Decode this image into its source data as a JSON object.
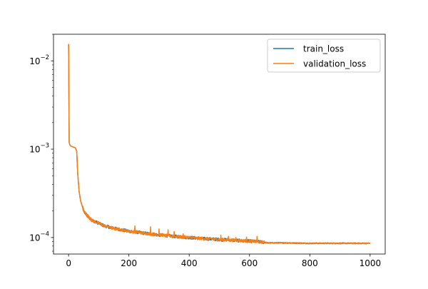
{
  "chart_data": {
    "type": "line",
    "title": "",
    "xlabel": "",
    "ylabel": "",
    "yscale": "log",
    "xlim": [
      -50,
      1050
    ],
    "ylim": [
      6.5e-05,
      0.02
    ],
    "grid": false,
    "legend_position": "top-right",
    "x_ticks": [
      {
        "value": 0,
        "label": "0"
      },
      {
        "value": 200,
        "label": "200"
      },
      {
        "value": 400,
        "label": "400"
      },
      {
        "value": 600,
        "label": "600"
      },
      {
        "value": 800,
        "label": "800"
      },
      {
        "value": 1000,
        "label": "1000"
      }
    ],
    "y_major_ticks": [
      {
        "value": 0.0001,
        "base": "10",
        "exp": "−4"
      },
      {
        "value": 0.001,
        "base": "10",
        "exp": "−3"
      },
      {
        "value": 0.01,
        "base": "10",
        "exp": "−2"
      }
    ],
    "y_minor_ticks": [
      7e-05,
      8e-05,
      9e-05,
      0.0002,
      0.0003,
      0.0004,
      0.0005,
      0.0006,
      0.0007,
      0.0008,
      0.0009,
      0.002,
      0.003,
      0.004,
      0.005,
      0.006,
      0.007,
      0.008,
      0.009,
      0.02
    ],
    "series": [
      {
        "name": "train_loss",
        "color": "#1f77b4",
        "x": [
          0,
          2,
          4,
          8,
          15,
          22,
          27,
          30,
          35,
          40,
          50,
          60,
          70,
          80,
          100,
          120,
          150,
          200,
          250,
          300,
          350,
          400,
          450,
          500,
          550,
          600,
          620,
          640,
          660,
          700,
          800,
          900,
          1000
        ],
        "y": [
          0.0155,
          0.0012,
          0.00112,
          0.00108,
          0.00106,
          0.00104,
          0.00095,
          0.00055,
          0.00033,
          0.00026,
          0.0002,
          0.00018,
          0.000165,
          0.000155,
          0.000145,
          0.000135,
          0.000127,
          0.000118,
          0.000112,
          0.000107,
          0.000103,
          0.0001,
          9.7e-05,
          9.5e-05,
          9.3e-05,
          9.1e-05,
          9e-05,
          8.9e-05,
          8.7e-05,
          8.7e-05,
          8.6e-05,
          8.6e-05,
          8.6e-05
        ]
      },
      {
        "name": "validation_loss",
        "color": "#ff7f0e",
        "x": [
          0,
          2,
          4,
          8,
          15,
          22,
          27,
          30,
          35,
          40,
          50,
          60,
          70,
          80,
          100,
          120,
          150,
          200,
          250,
          300,
          350,
          400,
          450,
          500,
          550,
          600,
          620,
          640,
          660,
          700,
          800,
          900,
          1000
        ],
        "y": [
          0.0155,
          0.0012,
          0.00112,
          0.00108,
          0.00106,
          0.00104,
          0.00095,
          0.00055,
          0.00033,
          0.00026,
          0.0002,
          0.00018,
          0.000165,
          0.000155,
          0.000145,
          0.000135,
          0.000127,
          0.000118,
          0.000112,
          0.000107,
          0.000103,
          0.0001,
          9.7e-05,
          9.5e-05,
          9.3e-05,
          9.1e-05,
          9e-05,
          8.9e-05,
          8.7e-05,
          8.7e-05,
          8.6e-05,
          8.6e-05,
          8.6e-05
        ],
        "spikes": [
          {
            "x": 220,
            "y": 0.000135
          },
          {
            "x": 272,
            "y": 0.000132
          },
          {
            "x": 300,
            "y": 0.000125
          },
          {
            "x": 330,
            "y": 0.000122
          },
          {
            "x": 350,
            "y": 0.000117
          },
          {
            "x": 380,
            "y": 0.00011
          },
          {
            "x": 505,
            "y": 0.000106
          },
          {
            "x": 530,
            "y": 0.000103
          },
          {
            "x": 555,
            "y": 0.0001
          },
          {
            "x": 590,
            "y": 0.000101
          },
          {
            "x": 625,
            "y": 0.000103
          }
        ]
      }
    ]
  }
}
